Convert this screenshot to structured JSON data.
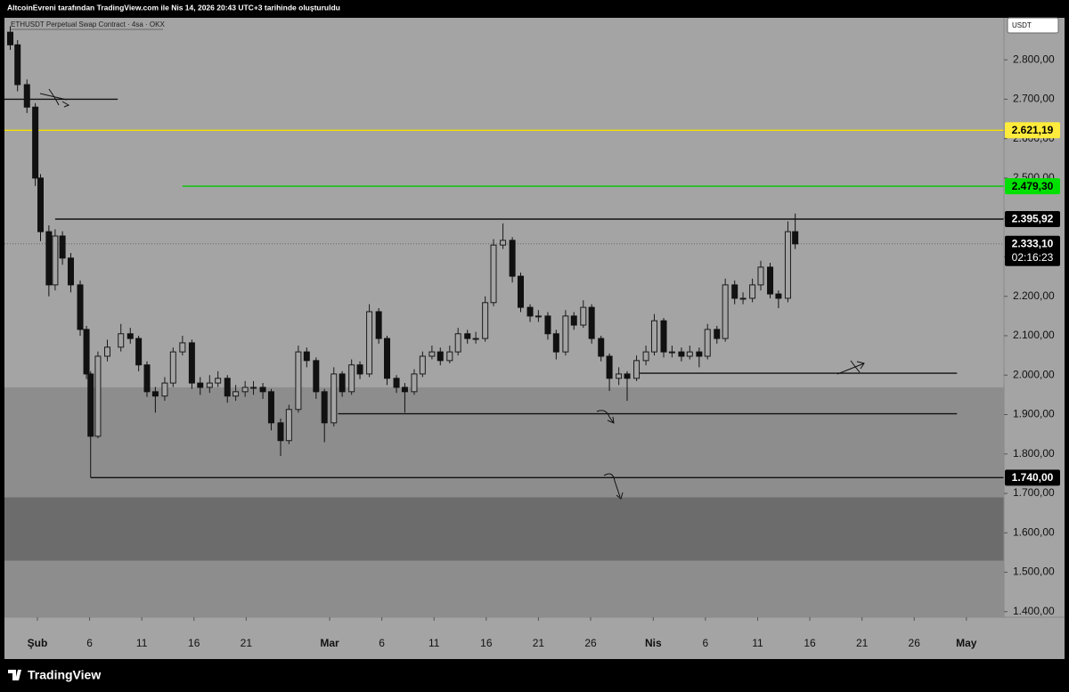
{
  "header": "AltcoinEvreni tarafından TradingView.com ile Nis 14, 2026 20:43 UTC+3 tarihinde oluşturuldu",
  "footer": "TradingView",
  "chart_data": {
    "type": "candlestick",
    "title": "ETHUSDT Perpetual Swap Contract · 4sa · OKX",
    "currency": "USDT",
    "x": [
      -2.6,
      -1.9,
      -1,
      -0.2,
      0.3,
      1.1,
      1.7,
      2.4,
      3.2,
      4.1,
      4.7,
      5.1,
      5.8,
      6.7,
      8,
      8.9,
      9.7,
      10.5,
      11.3,
      12.2,
      13,
      13.9,
      14.8,
      15.6,
      16.5,
      17.3,
      18.2,
      19,
      19.9,
      20.7,
      21.6,
      22.4,
      23.3,
      24.1,
      25,
      25.8,
      26.7,
      27.5,
      28.4,
      29.2,
      30.1,
      30.9,
      31.8,
      32.7,
      33.5,
      34.4,
      35.2,
      36.1,
      36.9,
      37.8,
      38.6,
      39.5,
      40.3,
      41.2,
      42,
      42.9,
      43.7,
      44.6,
      45.5,
      46.3,
      47.2,
      48,
      48.9,
      49.7,
      50.6,
      51.4,
      52.3,
      53.1,
      54,
      54.8,
      55.7,
      56.5,
      57.4,
      58.3,
      59.1,
      60,
      60.8,
      61.7,
      62.5,
      63.4,
      64.2,
      65.1,
      65.9,
      66.8,
      67.6,
      68.5,
      69.3,
      70.2,
      71,
      71.9,
      72.6
    ],
    "open": [
      2870,
      2838,
      2737,
      2680,
      2500,
      2364,
      2229,
      2353,
      2297,
      2229,
      2116,
      2003,
      1845,
      2048,
      2071,
      2105,
      2093,
      2026,
      1958,
      1947,
      1980,
      2059,
      2082,
      1980,
      1969,
      1980,
      1992,
      1947,
      1958,
      1969,
      1969,
      1958,
      1879,
      1834,
      1913,
      2059,
      2037,
      1958,
      1879,
      2003,
      1958,
      2026,
      2003,
      2161,
      2093,
      1992,
      1969,
      1958,
      2003,
      2048,
      2059,
      2037,
      2059,
      2105,
      2093,
      2093,
      2184,
      2330,
      2342,
      2251,
      2172,
      2150,
      2150,
      2105,
      2059,
      2150,
      2127,
      2172,
      2093,
      2048,
      1992,
      2003,
      1992,
      2037,
      2059,
      2138,
      2059,
      2059,
      2048,
      2059,
      2048,
      2116,
      2093,
      2229,
      2195,
      2195,
      2229,
      2274,
      2206,
      2195,
      2364
    ],
    "high": [
      2885,
      2850,
      2750,
      2690,
      2510,
      2380,
      2370,
      2365,
      2310,
      2240,
      2125,
      2010,
      2060,
      2090,
      2130,
      2120,
      2100,
      2035,
      1970,
      1995,
      2070,
      2100,
      2090,
      1995,
      2000,
      2010,
      2000,
      1975,
      1985,
      1985,
      1980,
      1965,
      1890,
      1925,
      2075,
      2070,
      2045,
      1965,
      2020,
      2010,
      2040,
      2035,
      2180,
      2170,
      2100,
      2000,
      1980,
      2015,
      2060,
      2075,
      2070,
      2075,
      2120,
      2115,
      2110,
      2200,
      2345,
      2385,
      2350,
      2260,
      2180,
      2165,
      2160,
      2115,
      2165,
      2160,
      2190,
      2180,
      2100,
      2055,
      2020,
      2010,
      2050,
      2075,
      2155,
      2145,
      2075,
      2070,
      2075,
      2070,
      2130,
      2125,
      2245,
      2240,
      2210,
      2245,
      2290,
      2285,
      2215,
      2390,
      2410
    ],
    "low": [
      2825,
      2720,
      2665,
      2480,
      2340,
      2200,
      2215,
      2280,
      2210,
      2100,
      1990,
      1740,
      1840,
      2035,
      2060,
      2080,
      2010,
      1945,
      1905,
      1935,
      1970,
      2050,
      1965,
      1950,
      1955,
      1970,
      1930,
      1935,
      1945,
      1950,
      1940,
      1860,
      1795,
      1825,
      1905,
      2020,
      1940,
      1830,
      1870,
      1945,
      1950,
      1990,
      1995,
      2080,
      1975,
      1955,
      1905,
      1950,
      1995,
      2040,
      2025,
      2030,
      2050,
      2080,
      2080,
      2085,
      2175,
      2320,
      2235,
      2160,
      2135,
      2135,
      2090,
      2040,
      2050,
      2115,
      2120,
      2080,
      2035,
      1960,
      1975,
      1935,
      1985,
      2025,
      2050,
      2045,
      2045,
      2035,
      2040,
      2020,
      2040,
      2080,
      2085,
      2180,
      2180,
      2185,
      2215,
      2195,
      2170,
      2185,
      2320
    ],
    "close": [
      2838,
      2737,
      2680,
      2500,
      2364,
      2229,
      2353,
      2297,
      2229,
      2116,
      2003,
      1845,
      2048,
      2071,
      2105,
      2093,
      2026,
      1958,
      1947,
      1980,
      2059,
      2082,
      1980,
      1969,
      1980,
      1992,
      1947,
      1958,
      1969,
      1969,
      1958,
      1879,
      1834,
      1913,
      2059,
      2037,
      1958,
      1879,
      2003,
      1958,
      2026,
      2003,
      2161,
      2093,
      1992,
      1969,
      1958,
      2003,
      2048,
      2059,
      2037,
      2059,
      2105,
      2093,
      2093,
      2184,
      2330,
      2342,
      2251,
      2172,
      2150,
      2150,
      2105,
      2059,
      2150,
      2127,
      2172,
      2093,
      2048,
      1992,
      2003,
      1992,
      2037,
      2059,
      2138,
      2059,
      2059,
      2048,
      2059,
      2048,
      2116,
      2093,
      2229,
      2195,
      2195,
      2229,
      2274,
      2206,
      2195,
      2364,
      2333.1
    ],
    "up_color": "#1a1a1a",
    "down_color": "#111111",
    "xlim": [
      -2.9,
      92.6
    ],
    "xticks": [
      {
        "value": 0,
        "label": "Şub"
      },
      {
        "value": 5,
        "label": "6"
      },
      {
        "value": 10,
        "label": "11"
      },
      {
        "value": 15,
        "label": "16"
      },
      {
        "value": 20,
        "label": "21"
      },
      {
        "value": 28,
        "label": "Mar"
      },
      {
        "value": 33,
        "label": "6"
      },
      {
        "value": 38,
        "label": "11"
      },
      {
        "value": 43,
        "label": "16"
      },
      {
        "value": 48,
        "label": "21"
      },
      {
        "value": 53,
        "label": "26"
      },
      {
        "value": 59,
        "label": "Nis"
      },
      {
        "value": 64,
        "label": "6"
      },
      {
        "value": 69,
        "label": "11"
      },
      {
        "value": 74,
        "label": "16"
      },
      {
        "value": 79,
        "label": "21"
      },
      {
        "value": 84,
        "label": "26"
      },
      {
        "value": 89,
        "label": "May"
      }
    ],
    "ylim": [
      1386,
      2902
    ],
    "yticks": [
      {
        "value": 1400,
        "label": "1.400,00"
      },
      {
        "value": 1500,
        "label": "1.500,00"
      },
      {
        "value": 1600,
        "label": "1.600,00"
      },
      {
        "value": 1700,
        "label": "1.700,00"
      },
      {
        "value": 1800,
        "label": "1.800,00"
      },
      {
        "value": 1900,
        "label": "1.900,00"
      },
      {
        "value": 2000,
        "label": "2.000,00"
      },
      {
        "value": 2100,
        "label": "2.100,00"
      },
      {
        "value": 2200,
        "label": "2.200,00"
      },
      {
        "value": 2300,
        "label": "2.300,00"
      },
      {
        "value": 2400,
        "label": "2.400,00"
      },
      {
        "value": 2500,
        "label": "2.500,00"
      },
      {
        "value": 2600,
        "label": "2.600,00"
      },
      {
        "value": 2700,
        "label": "2.700,00"
      },
      {
        "value": 2800,
        "label": "2.800,00"
      }
    ],
    "grid": false,
    "zones": [
      {
        "from": 1690,
        "to": 1969,
        "color": "#8d8d8d"
      },
      {
        "from": 1529,
        "to": 1690,
        "color": "#6c6c6c"
      },
      {
        "from": 1386,
        "to": 1529,
        "color": "#8d8d8d"
      }
    ],
    "levels": [
      {
        "value": 2700,
        "color": "#111111",
        "x1": 7.7
      },
      {
        "value": 2621.19,
        "label": "2.621,19",
        "color": "#f5e000",
        "label_bg": "#ffeb3b",
        "label_text": "#000000"
      },
      {
        "value": 2479.3,
        "label": "2.479,30",
        "color": "#00c800",
        "label_bg": "#00e000",
        "label_text": "#000000",
        "x0": 13.9
      },
      {
        "value": 2395.92,
        "label": "2.395,92",
        "color": "#111111",
        "label_bg": "#000000",
        "label_text": "#ffffff",
        "x0": 1.7
      },
      {
        "value": 2333.1,
        "label": "2.333,10",
        "countdown": "02:16:23",
        "color": "#666666",
        "style": "dotted",
        "label_bg": "#000000",
        "label_text": "#ffffff"
      },
      {
        "value": 2005,
        "color": "#111111",
        "x0": 57.7,
        "x1": 88.1
      },
      {
        "value": 1902,
        "color": "#111111",
        "x0": 28.8,
        "x1": 88.1
      },
      {
        "value": 1740,
        "label": "1.740,00",
        "color": "#111111",
        "label_bg": "#000000",
        "label_text": "#ffffff",
        "x0": 5.1
      }
    ]
  }
}
